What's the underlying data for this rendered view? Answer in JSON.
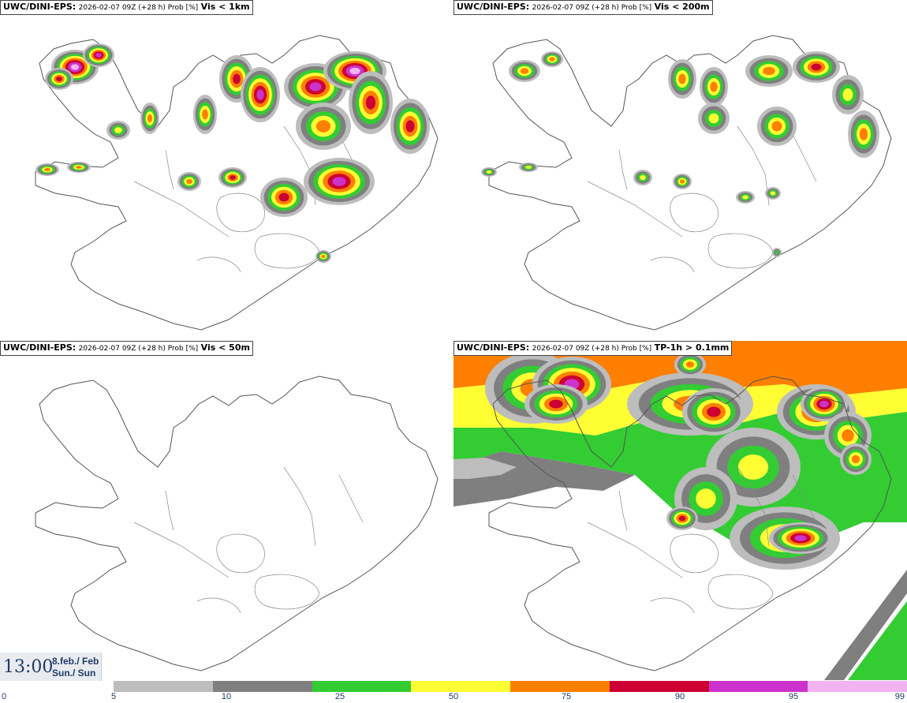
{
  "panels": [
    {
      "source": "UWC/DINI-EPS:",
      "meta": "2026-02-07 09Z (+28 h) Prob [%]",
      "variable": "Vis < 1km"
    },
    {
      "source": "UWC/DINI-EPS:",
      "meta": "2026-02-07 09Z (+28 h) Prob [%]",
      "variable": "Vis < 200m"
    },
    {
      "source": "UWC/DINI-EPS:",
      "meta": "2026-02-07 09Z (+28 h) Prob [%]",
      "variable": "Vis < 50m"
    },
    {
      "source": "UWC/DINI-EPS:",
      "meta": "2026-02-07 09Z (+28 h) Prob [%]",
      "variable": "TP-1h > 0.1mm"
    }
  ],
  "timestamp": {
    "time": "13:00",
    "date_line1": "8.feb./ Feb",
    "date_line2": "Sun./ Sun"
  },
  "legend": {
    "colors": [
      "#bdbdbd",
      "#7f7f7f",
      "#33cc33",
      "#ffff33",
      "#ff7f00",
      "#cc0033",
      "#cc33cc",
      "#f2b3f2"
    ],
    "ticks": [
      "0",
      "5",
      "10",
      "25",
      "50",
      "75",
      "90",
      "95",
      "99"
    ]
  }
}
